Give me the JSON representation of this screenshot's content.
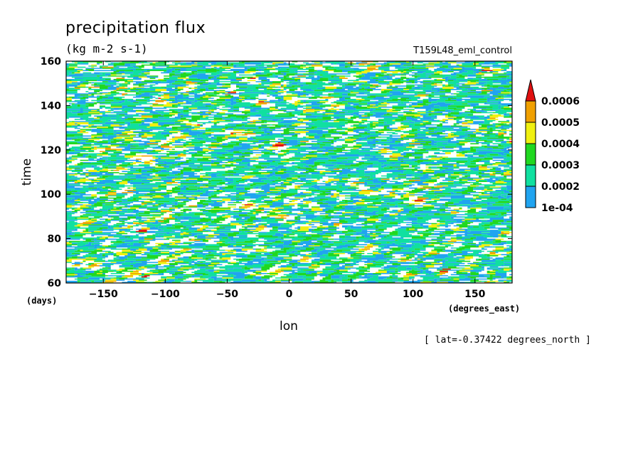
{
  "chart_data": {
    "type": "heatmap",
    "title": "precipitation flux",
    "subtitle": "(kg m-2 s-1)",
    "run_label": "T159L48_eml_control",
    "xlabel": "lon",
    "x_unit": "(degrees_east)",
    "ylabel": "time",
    "y_unit": "(days)",
    "annotation": "[ lat=-0.37422 degrees_north ]",
    "xlim": [
      -180,
      180
    ],
    "ylim": [
      60,
      160
    ],
    "x_ticks": [
      -150,
      -100,
      -50,
      0,
      50,
      100,
      150
    ],
    "x_tick_labels": [
      "−150",
      "−100",
      "−50",
      "0",
      "50",
      "100",
      "150"
    ],
    "y_ticks": [
      60,
      80,
      100,
      120,
      140,
      160
    ],
    "y_tick_labels": [
      "60",
      "80",
      "100",
      "120",
      "140",
      "160"
    ],
    "grid": false,
    "legend_position": "right",
    "colorbar": {
      "levels": [
        0.0001,
        0.0002,
        0.0003,
        0.0004,
        0.0005,
        0.0006
      ],
      "labels": [
        "1e-04",
        "0.0002",
        "0.0003",
        "0.0004",
        "0.0005",
        "0.0006"
      ],
      "colors": [
        "#20a4f0",
        "#10e0a0",
        "#20d820",
        "#f0f010",
        "#f0a000",
        "#e01010"
      ],
      "below_color": "#ffffff",
      "extend": "max"
    }
  }
}
